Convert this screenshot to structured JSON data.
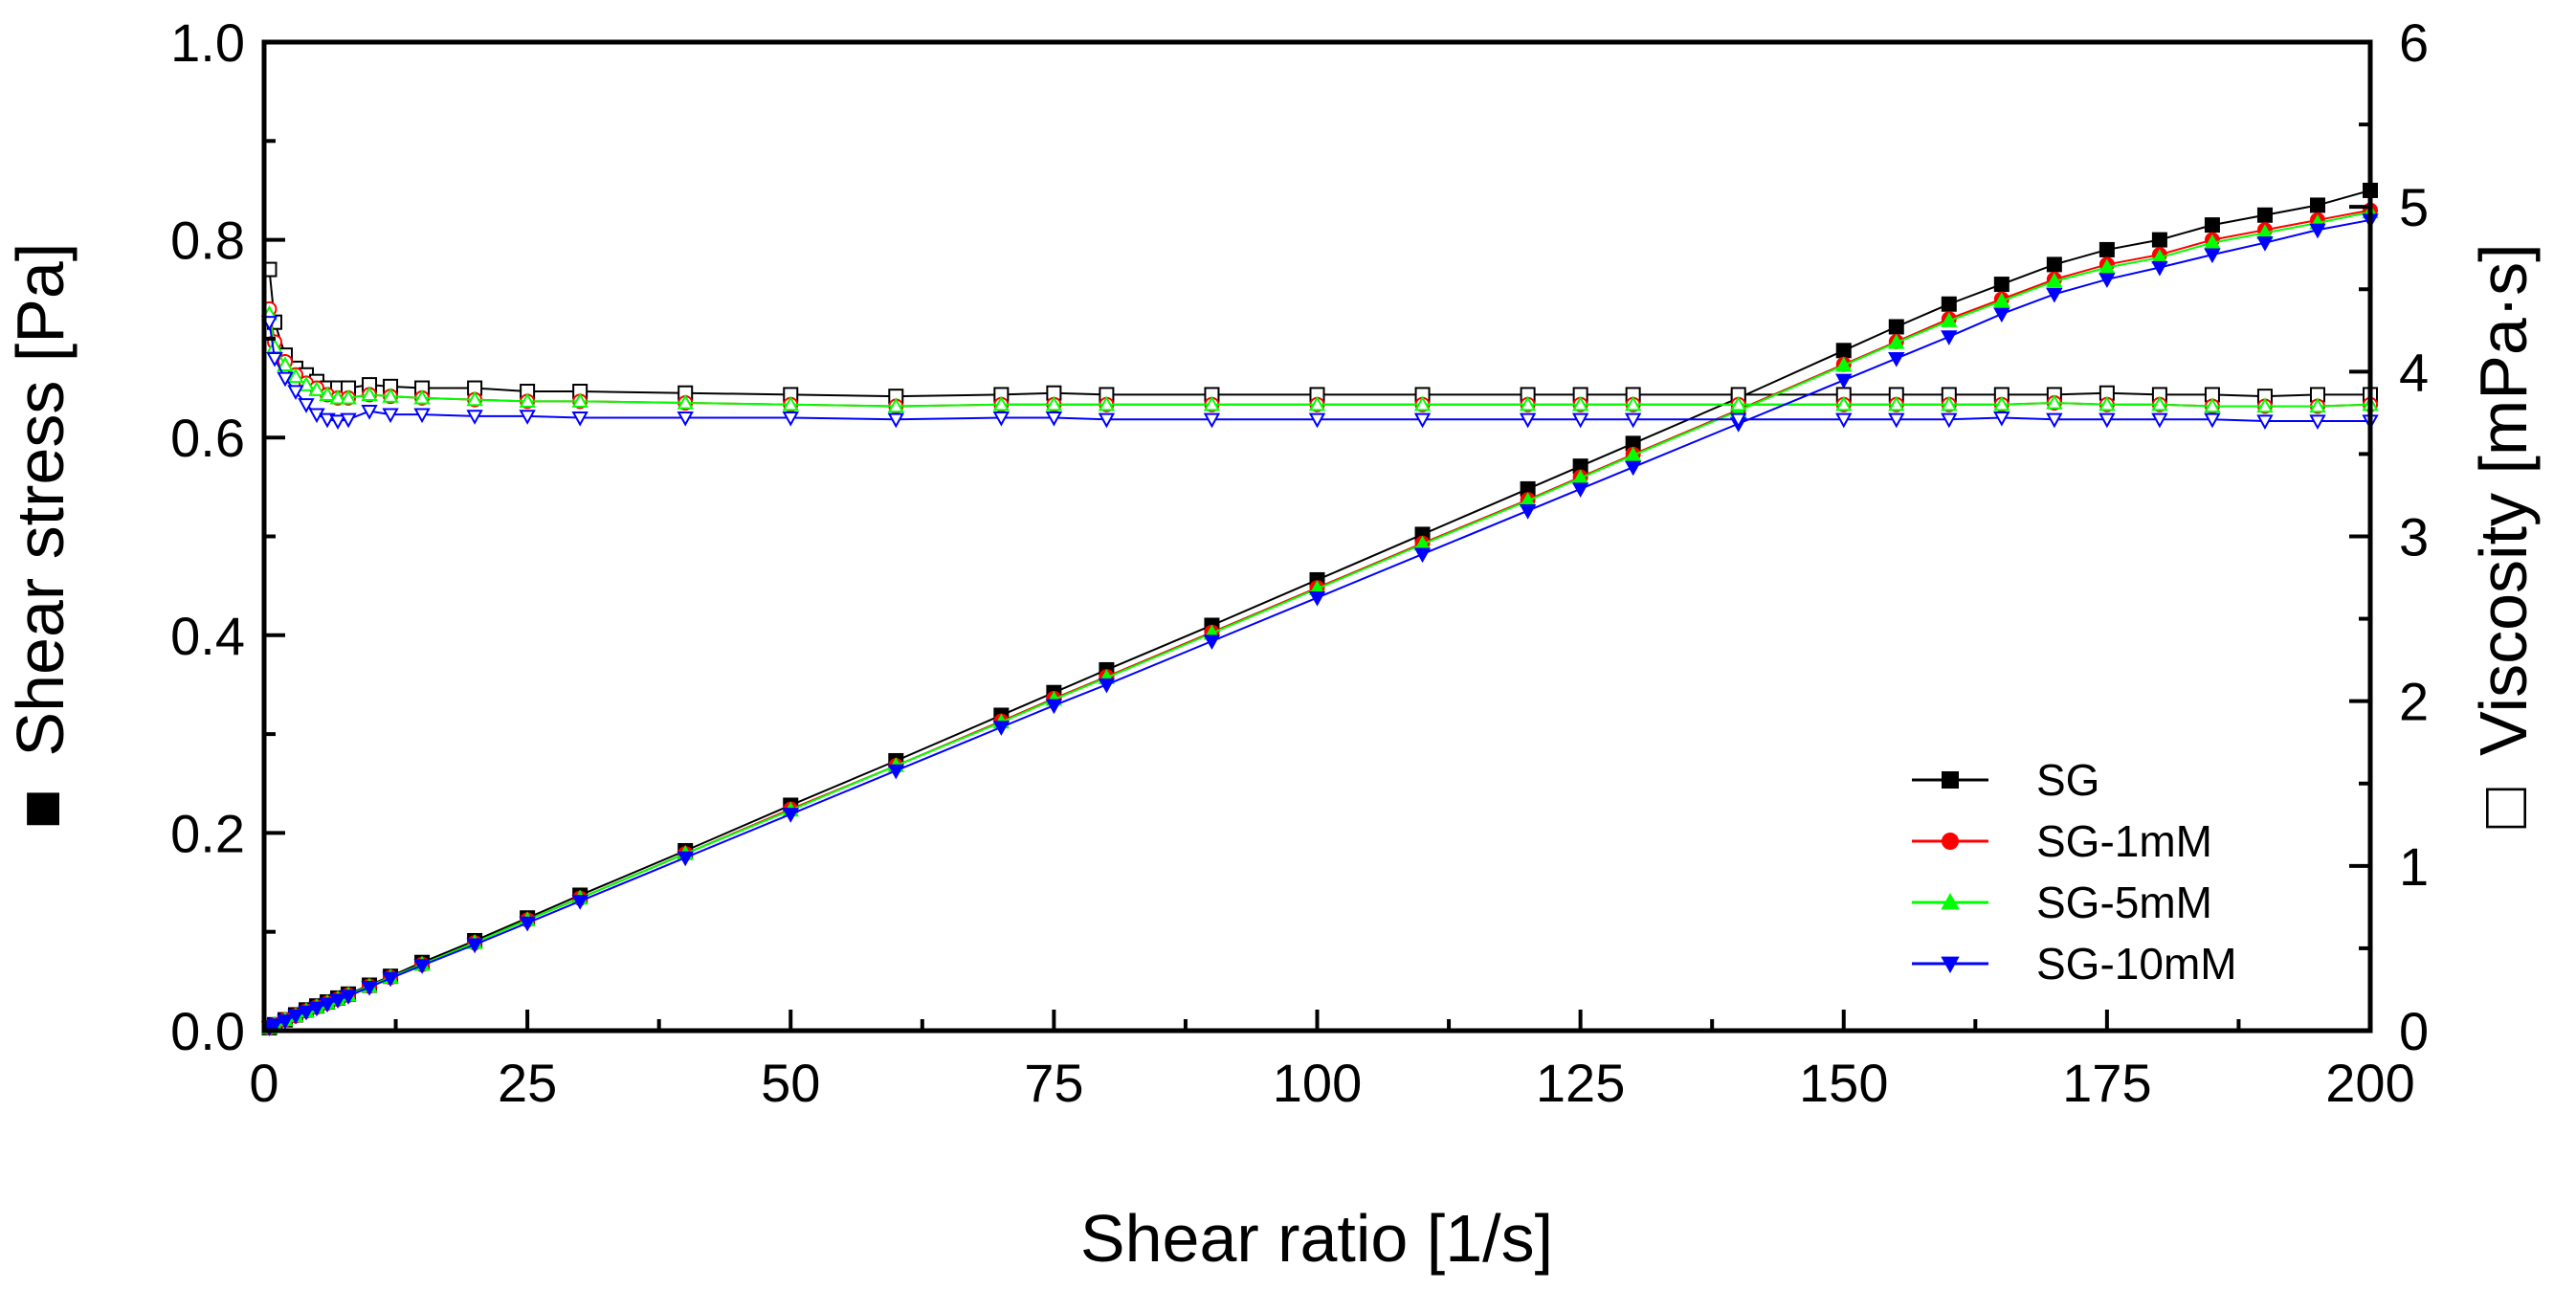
{
  "chart_data": {
    "type": "scatter",
    "title": "",
    "xlabel": "Shear ratio [1/s]",
    "ylabel_left_marker": "■",
    "ylabel_left": "Shear stress [Pa]",
    "ylabel_right_marker": "□",
    "ylabel_right": "Viscosity [mPa·s]",
    "xlim": [
      0,
      200
    ],
    "ylim_left": [
      0,
      1.0
    ],
    "ylim_right": [
      0,
      6
    ],
    "x_ticks": [
      "0",
      "25",
      "50",
      "75",
      "100",
      "125",
      "150",
      "175",
      "200"
    ],
    "y_left_ticks": [
      "0.0",
      "0.2",
      "0.4",
      "0.6",
      "0.8",
      "1.0"
    ],
    "y_right_ticks": [
      "0",
      "1",
      "2",
      "3",
      "4",
      "5",
      "6"
    ],
    "grid": false,
    "legend_position": "bottom-right",
    "x": [
      0.5,
      1,
      2,
      3,
      4,
      5,
      6,
      7,
      8,
      10,
      12,
      15,
      20,
      25,
      30,
      40,
      50,
      60,
      70,
      75,
      80,
      90,
      100,
      110,
      120,
      125,
      130,
      140,
      150,
      155,
      160,
      165,
      170,
      175,
      180,
      185,
      190,
      195,
      200
    ],
    "series": [
      {
        "name": "SG",
        "color": "#000000",
        "marker": "square",
        "shear_stress": [
          0.003,
          0.006,
          0.011,
          0.016,
          0.021,
          0.025,
          0.029,
          0.033,
          0.037,
          0.046,
          0.055,
          0.069,
          0.091,
          0.114,
          0.137,
          0.182,
          0.228,
          0.273,
          0.319,
          0.342,
          0.365,
          0.41,
          0.456,
          0.502,
          0.548,
          0.571,
          0.594,
          0.64,
          0.688,
          0.712,
          0.735,
          0.755,
          0.775,
          0.79,
          0.8,
          0.815,
          0.825,
          0.835,
          0.85
        ],
        "viscosity": [
          4.62,
          4.3,
          4.1,
          4.02,
          3.98,
          3.94,
          3.9,
          3.9,
          3.9,
          3.92,
          3.91,
          3.9,
          3.9,
          3.88,
          3.88,
          3.87,
          3.86,
          3.85,
          3.86,
          3.87,
          3.86,
          3.86,
          3.86,
          3.86,
          3.86,
          3.86,
          3.86,
          3.86,
          3.86,
          3.86,
          3.86,
          3.86,
          3.86,
          3.87,
          3.86,
          3.86,
          3.85,
          3.86,
          3.86
        ]
      },
      {
        "name": "SG-1mM",
        "color": "#ff0000",
        "marker": "circle",
        "shear_stress": [
          0.003,
          0.006,
          0.011,
          0.015,
          0.02,
          0.024,
          0.028,
          0.032,
          0.036,
          0.045,
          0.054,
          0.067,
          0.089,
          0.112,
          0.134,
          0.179,
          0.224,
          0.268,
          0.313,
          0.336,
          0.358,
          0.403,
          0.448,
          0.493,
          0.537,
          0.56,
          0.583,
          0.628,
          0.674,
          0.697,
          0.72,
          0.74,
          0.76,
          0.775,
          0.785,
          0.8,
          0.81,
          0.82,
          0.83
        ],
        "viscosity": [
          4.38,
          4.18,
          4.06,
          3.98,
          3.93,
          3.9,
          3.86,
          3.84,
          3.84,
          3.86,
          3.85,
          3.84,
          3.83,
          3.82,
          3.82,
          3.81,
          3.8,
          3.79,
          3.8,
          3.8,
          3.8,
          3.8,
          3.8,
          3.8,
          3.8,
          3.8,
          3.8,
          3.8,
          3.8,
          3.8,
          3.8,
          3.8,
          3.81,
          3.8,
          3.8,
          3.79,
          3.79,
          3.79,
          3.8
        ]
      },
      {
        "name": "SG-5mM",
        "color": "#00ff00",
        "marker": "triangle-up",
        "shear_stress": [
          0.003,
          0.006,
          0.011,
          0.015,
          0.02,
          0.024,
          0.028,
          0.032,
          0.036,
          0.045,
          0.054,
          0.067,
          0.089,
          0.112,
          0.134,
          0.179,
          0.223,
          0.268,
          0.312,
          0.335,
          0.357,
          0.402,
          0.447,
          0.492,
          0.536,
          0.559,
          0.582,
          0.627,
          0.673,
          0.696,
          0.718,
          0.738,
          0.758,
          0.772,
          0.782,
          0.797,
          0.807,
          0.817,
          0.828
        ],
        "viscosity": [
          4.35,
          4.15,
          4.04,
          3.97,
          3.92,
          3.89,
          3.86,
          3.84,
          3.84,
          3.86,
          3.85,
          3.84,
          3.83,
          3.82,
          3.82,
          3.81,
          3.8,
          3.79,
          3.8,
          3.8,
          3.8,
          3.8,
          3.8,
          3.8,
          3.8,
          3.8,
          3.8,
          3.8,
          3.8,
          3.8,
          3.8,
          3.8,
          3.81,
          3.8,
          3.8,
          3.79,
          3.79,
          3.79,
          3.8
        ]
      },
      {
        "name": "SG-10mM",
        "color": "#0000ff",
        "marker": "triangle-down",
        "shear_stress": [
          0.003,
          0.006,
          0.01,
          0.015,
          0.019,
          0.023,
          0.027,
          0.031,
          0.035,
          0.044,
          0.053,
          0.066,
          0.087,
          0.109,
          0.131,
          0.175,
          0.219,
          0.263,
          0.307,
          0.329,
          0.35,
          0.394,
          0.438,
          0.482,
          0.526,
          0.548,
          0.57,
          0.614,
          0.658,
          0.68,
          0.702,
          0.725,
          0.745,
          0.76,
          0.772,
          0.785,
          0.797,
          0.81,
          0.82
        ],
        "viscosity": [
          4.3,
          4.08,
          3.96,
          3.88,
          3.8,
          3.74,
          3.71,
          3.7,
          3.71,
          3.76,
          3.74,
          3.74,
          3.73,
          3.73,
          3.72,
          3.72,
          3.72,
          3.71,
          3.72,
          3.72,
          3.71,
          3.71,
          3.71,
          3.71,
          3.71,
          3.71,
          3.71,
          3.71,
          3.71,
          3.71,
          3.71,
          3.72,
          3.71,
          3.71,
          3.71,
          3.71,
          3.7,
          3.7,
          3.7
        ]
      }
    ]
  }
}
